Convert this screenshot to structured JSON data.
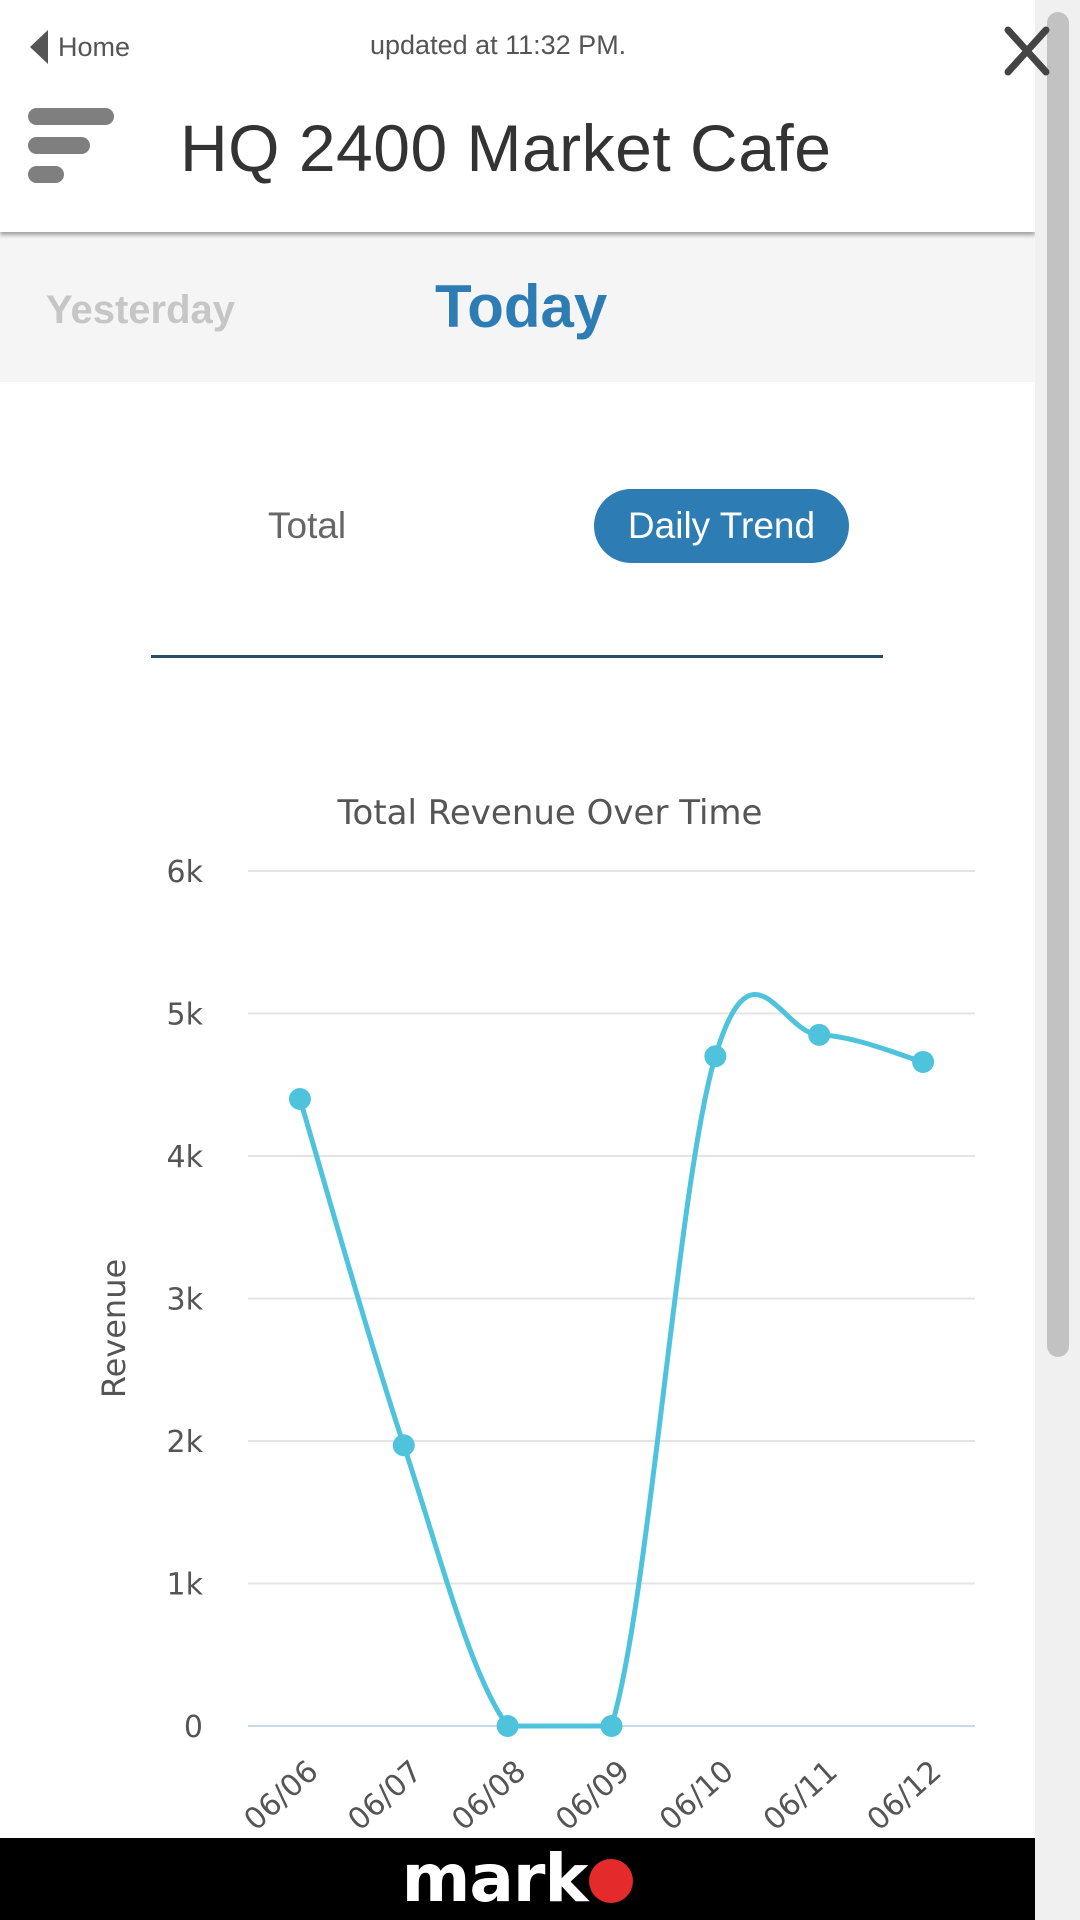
{
  "header": {
    "back_label": "Home",
    "updated_text": "updated at 11:32 PM.",
    "title": "HQ 2400 Market Cafe"
  },
  "day_tabs": {
    "yesterday": "Yesterday",
    "today": "Today",
    "active": "today"
  },
  "view_toggle": {
    "total": "Total",
    "daily_trend": "Daily Trend",
    "active": "daily_trend"
  },
  "chart_data": {
    "type": "line",
    "title": "Total Revenue Over Time",
    "xlabel": "",
    "ylabel": "Revenue",
    "categories": [
      "06/06",
      "06/07",
      "06/08",
      "06/09",
      "06/10",
      "06/11",
      "06/12"
    ],
    "values": [
      4400,
      1970,
      0,
      0,
      4700,
      4850,
      4660
    ],
    "ylim": [
      0,
      6000
    ],
    "yticks": [
      0,
      1000,
      2000,
      3000,
      4000,
      5000,
      6000
    ],
    "ytick_labels": [
      "0",
      "1k",
      "2k",
      "3k",
      "4k",
      "5k",
      "6k"
    ],
    "grid": true,
    "line_color": "#4fc3dc",
    "smooth": true
  },
  "footer": {
    "brand": "mark"
  },
  "colors": {
    "accent": "#2d7cb4",
    "brand_dot": "#e42a2a"
  }
}
